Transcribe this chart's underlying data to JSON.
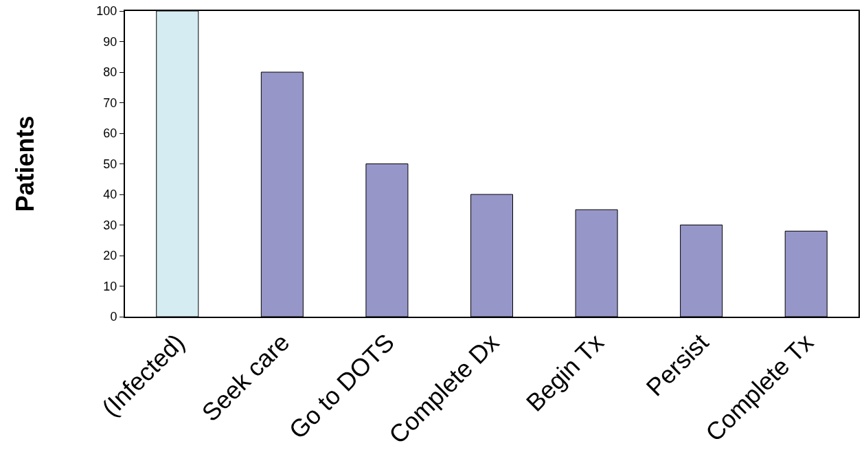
{
  "chart_data": {
    "type": "bar",
    "ylabel": "Patients",
    "categories": [
      "(Infected)",
      "Seek care",
      "Go to DOTS",
      "Complete Dx",
      "Begin Tx",
      "Persist",
      "Complete Tx"
    ],
    "values": [
      100,
      80,
      50,
      40,
      35,
      30,
      28
    ],
    "colors": [
      "#d4ecf2",
      "#9696c8",
      "#9696c8",
      "#9696c8",
      "#9696c8",
      "#9696c8",
      "#9696c8"
    ],
    "ylim": [
      0,
      100
    ],
    "yticks": [
      0,
      10,
      20,
      30,
      40,
      50,
      60,
      70,
      80,
      90,
      100
    ],
    "grid": false
  }
}
